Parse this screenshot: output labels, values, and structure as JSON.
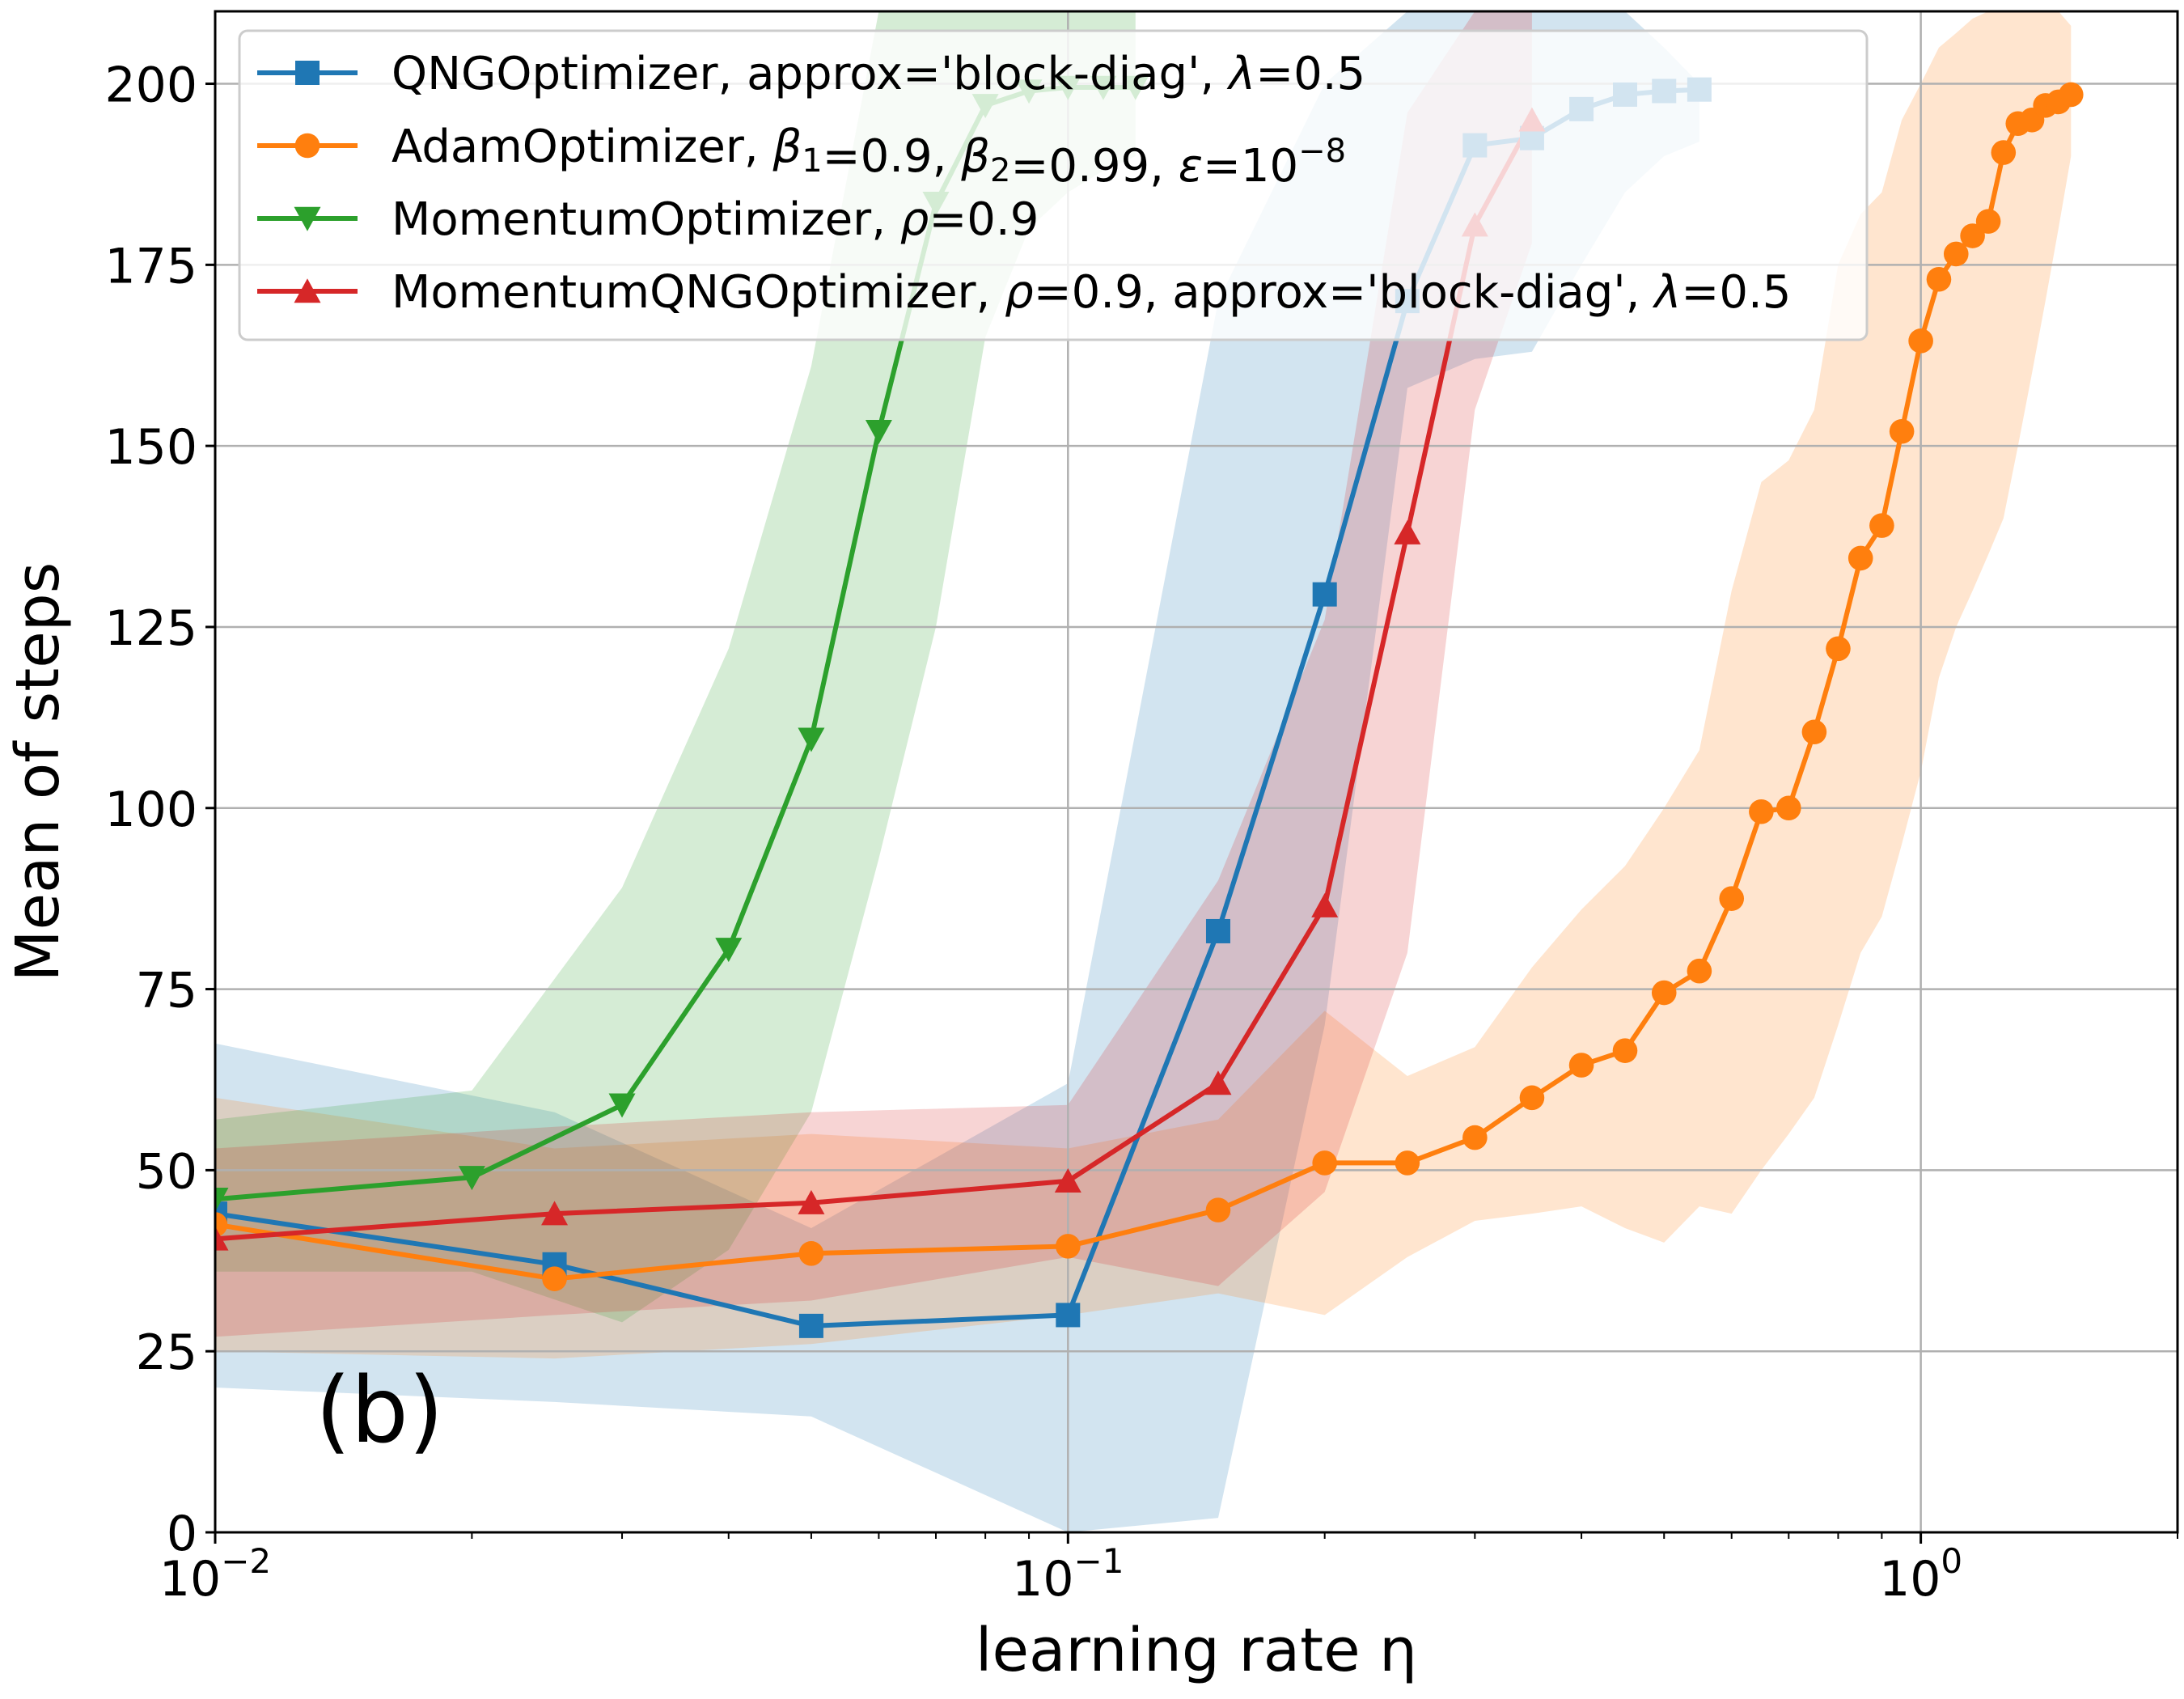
{
  "chart_data": {
    "type": "line",
    "xlabel": "learning rate η",
    "ylabel": "Mean of steps",
    "xscale": "log",
    "xlim": [
      0.01,
      2.0
    ],
    "ylim": [
      0,
      210
    ],
    "xticks": [
      0.01,
      0.1,
      1.0
    ],
    "xtick_labels": [
      {
        "base": "10",
        "exp": "−2"
      },
      {
        "base": "10",
        "exp": "−1"
      },
      {
        "base": "10",
        "exp": "0"
      }
    ],
    "yticks": [
      0,
      25,
      50,
      75,
      100,
      125,
      150,
      175,
      200
    ],
    "ytick_labels": [
      "0",
      "25",
      "50",
      "75",
      "100",
      "125",
      "150",
      "175",
      "200"
    ],
    "grid": true,
    "legend_position": "top-left",
    "annotation": "(b)",
    "series": [
      {
        "name": "QNGOptimizer, approx='block-diag', λ=0.5",
        "legend_parts": [
          {
            "t": "QNGOptimizer, approx='block-diag', "
          },
          {
            "t": "λ",
            "i": true
          },
          {
            "t": "=0.5"
          }
        ],
        "color": "#1f77b4",
        "marker": "square",
        "x": [
          0.01,
          0.025,
          0.05,
          0.1,
          0.15,
          0.2,
          0.25,
          0.3,
          0.35,
          0.4,
          0.45,
          0.5,
          0.55
        ],
        "y": [
          44,
          37,
          28.5,
          30,
          83,
          129.5,
          170,
          191.5,
          192.5,
          196.5,
          198.5,
          199,
          199.2
        ],
        "lower": [
          20,
          18,
          16,
          0,
          2,
          70,
          158,
          162,
          163,
          175,
          185,
          190,
          192
        ],
        "upper": [
          67.5,
          58,
          42,
          62,
          170,
          200,
          210,
          210,
          210,
          210,
          210,
          205,
          200
        ]
      },
      {
        "name": "AdamOptimizer, β1=0.9, β2=0.99, ε=10−8",
        "legend_parts": [
          {
            "t": "AdamOptimizer, "
          },
          {
            "t": "β",
            "i": true
          },
          {
            "t": "1",
            "sub": true
          },
          {
            "t": "=0.9, "
          },
          {
            "t": "β",
            "i": true
          },
          {
            "t": "2",
            "sub": true
          },
          {
            "t": "=0.99, "
          },
          {
            "t": "ε",
            "i": true
          },
          {
            "t": "=10"
          },
          {
            "t": "−8",
            "sup": true
          }
        ],
        "color": "#ff7f0e",
        "marker": "circle",
        "x": [
          0.01,
          0.025,
          0.05,
          0.1,
          0.15,
          0.2,
          0.25,
          0.3,
          0.35,
          0.4,
          0.45,
          0.5,
          0.55,
          0.6,
          0.65,
          0.7,
          0.75,
          0.8,
          0.85,
          0.9,
          0.95,
          1.0,
          1.05,
          1.1,
          1.15,
          1.2,
          1.25,
          1.3,
          1.35,
          1.4,
          1.45,
          1.5
        ],
        "y": [
          42.5,
          35,
          38.5,
          39.5,
          44.5,
          51,
          51,
          54.5,
          60,
          64.5,
          66.5,
          74.5,
          77.5,
          87.5,
          99.5,
          100,
          110.5,
          122,
          134.5,
          139,
          152,
          164.5,
          173,
          176.5,
          179,
          181,
          190.5,
          194.5,
          195,
          197,
          197.5,
          198.5
        ],
        "lower": [
          25,
          24,
          26,
          30,
          33,
          30,
          38,
          43,
          44,
          45,
          42,
          40,
          45,
          44,
          50,
          55,
          60,
          70,
          80,
          85,
          95,
          105,
          118,
          125,
          130,
          135,
          140,
          150,
          160,
          170,
          180,
          190
        ],
        "upper": [
          60,
          53,
          55,
          53,
          57,
          72,
          63,
          67,
          78,
          86,
          92,
          100,
          108,
          130,
          145,
          148,
          155,
          175,
          182,
          185,
          195,
          200,
          205,
          207,
          209,
          210,
          210,
          210,
          210,
          210,
          210,
          208
        ]
      },
      {
        "name": "MomentumOptimizer, ρ=0.9",
        "legend_parts": [
          {
            "t": "MomentumOptimizer, "
          },
          {
            "t": "ρ",
            "i": true
          },
          {
            "t": "=0.9"
          }
        ],
        "color": "#2ca02c",
        "marker": "triangle-down",
        "x": [
          0.01,
          0.02,
          0.03,
          0.04,
          0.05,
          0.06,
          0.07,
          0.08,
          0.09,
          0.1,
          0.11,
          0.12
        ],
        "y": [
          46,
          49,
          59,
          80.5,
          109.5,
          152,
          183.5,
          197,
          199,
          199.5,
          199.5,
          199.5
        ],
        "lower": [
          36,
          36,
          29,
          39,
          58,
          93,
          125,
          165,
          180,
          185,
          188,
          190
        ],
        "upper": [
          57,
          61,
          89,
          122,
          161,
          210,
          210,
          210,
          210,
          210,
          210,
          210
        ]
      },
      {
        "name": "MomentumQNGOptimizer, ρ=0.9, approx='block-diag', λ=0.5",
        "legend_parts": [
          {
            "t": "MomentumQNGOptimizer, "
          },
          {
            "t": "ρ",
            "i": true
          },
          {
            "t": "=0.9, approx='block-diag', "
          },
          {
            "t": "λ",
            "i": true
          },
          {
            "t": "=0.5"
          }
        ],
        "color": "#d62728",
        "marker": "triangle-up",
        "x": [
          0.01,
          0.025,
          0.05,
          0.1,
          0.15,
          0.2,
          0.25,
          0.3,
          0.35
        ],
        "y": [
          40.5,
          44,
          45.5,
          48.5,
          62,
          86.5,
          138,
          180.5,
          195
        ],
        "lower": [
          27,
          30,
          32,
          38,
          34,
          47,
          80,
          155,
          178
        ],
        "upper": [
          53,
          56,
          58,
          59,
          90,
          126,
          196,
          210,
          210
        ]
      }
    ]
  }
}
